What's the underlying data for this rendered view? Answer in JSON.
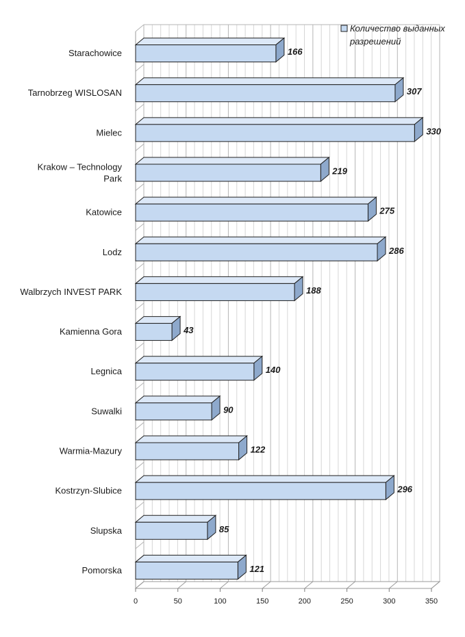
{
  "chart_data": {
    "type": "bar",
    "orientation": "horizontal",
    "style": "3d",
    "categories": [
      "Starachowice",
      "Tarnobrzeg WISLOSAN",
      "Mielec",
      "Krakow – Technology Park",
      "Katowice",
      "Lodz",
      "Walbrzych INVEST PARK",
      "Kamienna Gora",
      "Legnica",
      "Suwalki",
      "Warmia-Mazury",
      "Kostrzyn-Slubice",
      "Slupska",
      "Pomorska"
    ],
    "series": [
      {
        "name": "Количество выданных разрешений",
        "values": [
          166,
          307,
          330,
          219,
          275,
          286,
          188,
          43,
          140,
          90,
          122,
          296,
          85,
          121
        ],
        "color": "#c5d9f1"
      }
    ],
    "data_labels": [
      "166",
      "307",
      "330",
      "219",
      "275",
      "286",
      "188",
      "43",
      "140",
      "90",
      "122",
      "296",
      "85",
      "121"
    ],
    "xlim": [
      0,
      350
    ],
    "xticks": [
      "0",
      "50",
      "100",
      "150",
      "200",
      "250",
      "300",
      "350"
    ],
    "title": "",
    "xlabel": "",
    "ylabel": "",
    "grid": true,
    "legend_position": "top-right",
    "legend_lines": [
      "Количество выданных",
      "разрешений"
    ]
  }
}
